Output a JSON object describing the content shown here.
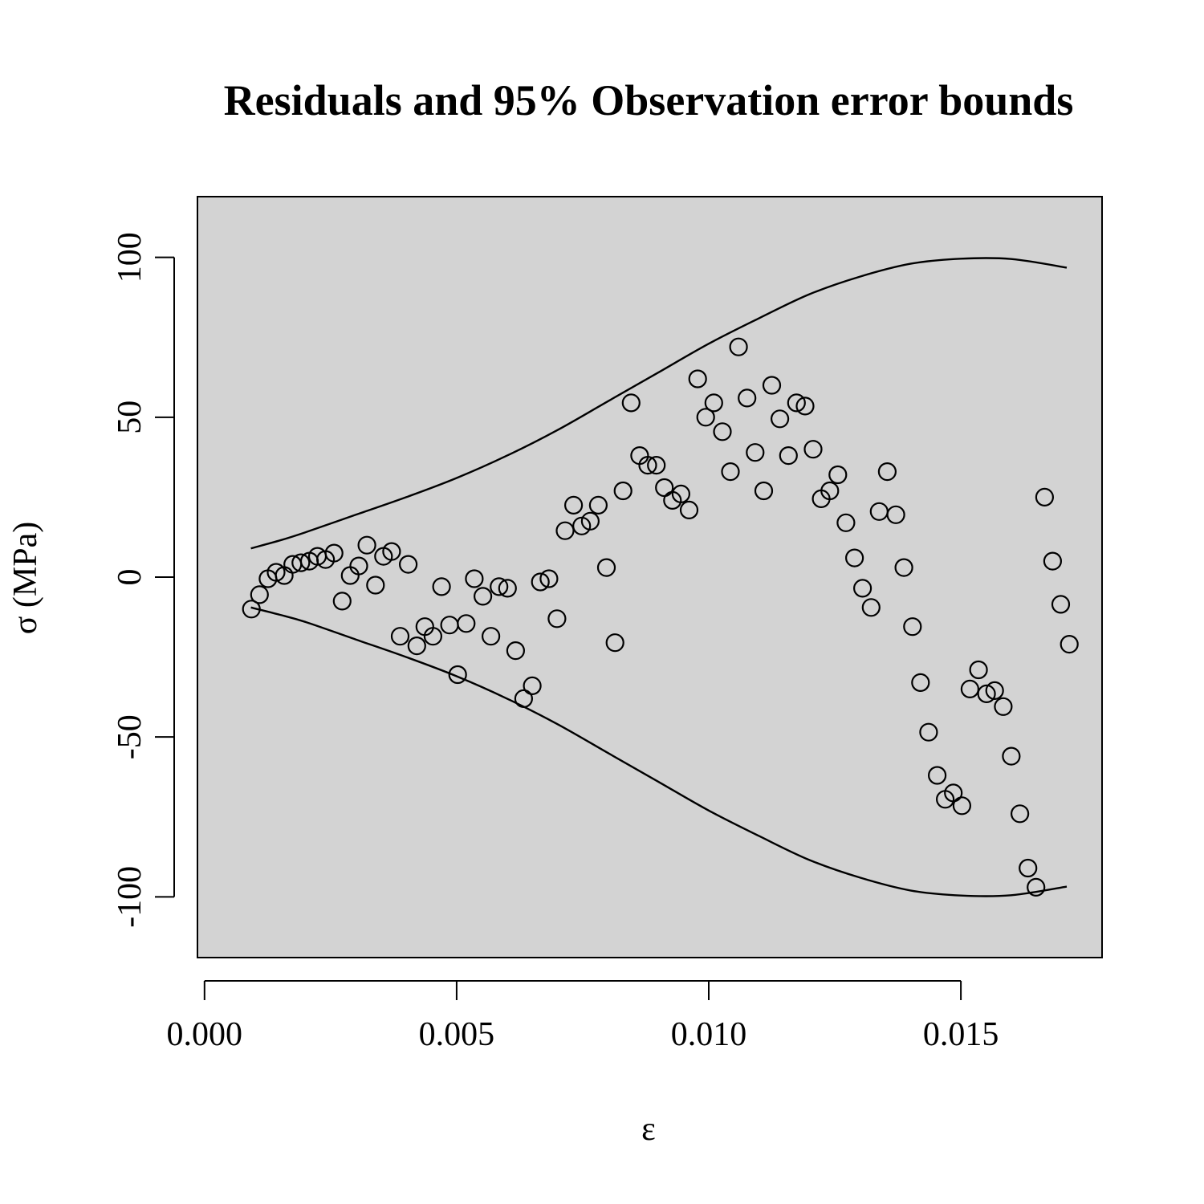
{
  "chart_data": {
    "type": "scatter",
    "title": "Residuals and 95% Observation error bounds",
    "xlabel": "ε",
    "ylabel": "σ  (MPa)",
    "xlim": [
      -0.00014,
      0.0178
    ],
    "ylim": [
      -119,
      119
    ],
    "xticks": [
      0.0,
      0.005,
      0.01,
      0.015
    ],
    "xtick_labels": [
      "0.000",
      "0.005",
      "0.010",
      "0.015"
    ],
    "yticks": [
      -100,
      -50,
      0,
      50,
      100
    ],
    "ytick_labels": [
      "-100",
      "-50",
      "0",
      "50",
      "100"
    ],
    "grid": false,
    "colors": {
      "panel": "#d3d3d3",
      "ink": "#000000",
      "background": "#ffffff"
    },
    "bounds": {
      "x": [
        0.00092,
        0.0015,
        0.002,
        0.003,
        0.004,
        0.005,
        0.006,
        0.007,
        0.008,
        0.009,
        0.01,
        0.011,
        0.012,
        0.013,
        0.014,
        0.015,
        0.016,
        0.0171
      ],
      "upper": [
        9,
        11.5,
        14,
        19.5,
        25,
        31,
        38,
        46,
        55,
        64,
        73,
        81,
        88.5,
        94,
        98,
        99.6,
        99.5,
        96.8
      ],
      "lower": [
        -9.5,
        -11.8,
        -14,
        -19.5,
        -25,
        -31,
        -38,
        -46,
        -55,
        -64,
        -73,
        -81,
        -88.5,
        -94,
        -98,
        -99.6,
        -99.5,
        -96.8
      ]
    },
    "points": {
      "x": [
        0.00093,
        0.00109,
        0.00126,
        0.00142,
        0.00158,
        0.00175,
        0.00191,
        0.00208,
        0.00224,
        0.0024,
        0.00257,
        0.00273,
        0.00289,
        0.00306,
        0.00322,
        0.00339,
        0.00355,
        0.00371,
        0.00388,
        0.00404,
        0.00421,
        0.00437,
        0.00453,
        0.0047,
        0.00486,
        0.00502,
        0.00519,
        0.00535,
        0.00552,
        0.00568,
        0.00584,
        0.00601,
        0.00617,
        0.00633,
        0.0065,
        0.00666,
        0.00683,
        0.00699,
        0.00715,
        0.00732,
        0.00748,
        0.00765,
        0.00781,
        0.00797,
        0.00814,
        0.0083,
        0.00846,
        0.00863,
        0.00879,
        0.00896,
        0.00912,
        0.00928,
        0.00945,
        0.00961,
        0.00978,
        0.00994,
        0.0101,
        0.01027,
        0.01043,
        0.01059,
        0.01076,
        0.01092,
        0.01109,
        0.01125,
        0.01141,
        0.01158,
        0.01174,
        0.01191,
        0.01207,
        0.01223,
        0.0124,
        0.01256,
        0.01272,
        0.01289,
        0.01305,
        0.01322,
        0.01338,
        0.01354,
        0.01371,
        0.01387,
        0.01404,
        0.0142,
        0.01436,
        0.01453,
        0.01469,
        0.01485,
        0.01502,
        0.01518,
        0.01535,
        0.01551,
        0.01567,
        0.01584,
        0.016,
        0.01617,
        0.01633,
        0.01649,
        0.01666,
        0.01682,
        0.01698,
        0.01715
      ],
      "y": [
        -10,
        -5.5,
        -0.5,
        1.5,
        0.5,
        4,
        4.5,
        5,
        6.5,
        5.5,
        7.5,
        -7.5,
        0.5,
        3.5,
        10,
        -2.5,
        6.5,
        8,
        -18.5,
        4,
        -21.5,
        -15.5,
        -18.5,
        -3,
        -15,
        -30.5,
        -14.5,
        -0.5,
        -6,
        -18.5,
        -3,
        -3.5,
        -23,
        -38,
        -34,
        -1.5,
        -0.5,
        -13,
        14.5,
        22.5,
        16,
        17.5,
        22.5,
        3,
        -20.5,
        27,
        54.5,
        38,
        35,
        35,
        28,
        24,
        26,
        21,
        62,
        50,
        54.5,
        45.5,
        33,
        72,
        56,
        39,
        27,
        60,
        49.5,
        38,
        54.5,
        53.5,
        40,
        24.5,
        27,
        32,
        17,
        6,
        -3.5,
        -9.5,
        20.5,
        33,
        19.5,
        3,
        -15.5,
        -33,
        -48.5,
        -62,
        -69.5,
        -67.5,
        -71.5,
        -35,
        -29,
        -36.5,
        -35.5,
        -40.5,
        -56,
        -74,
        -91,
        -97,
        25,
        5,
        -8.5,
        -21
      ]
    }
  }
}
